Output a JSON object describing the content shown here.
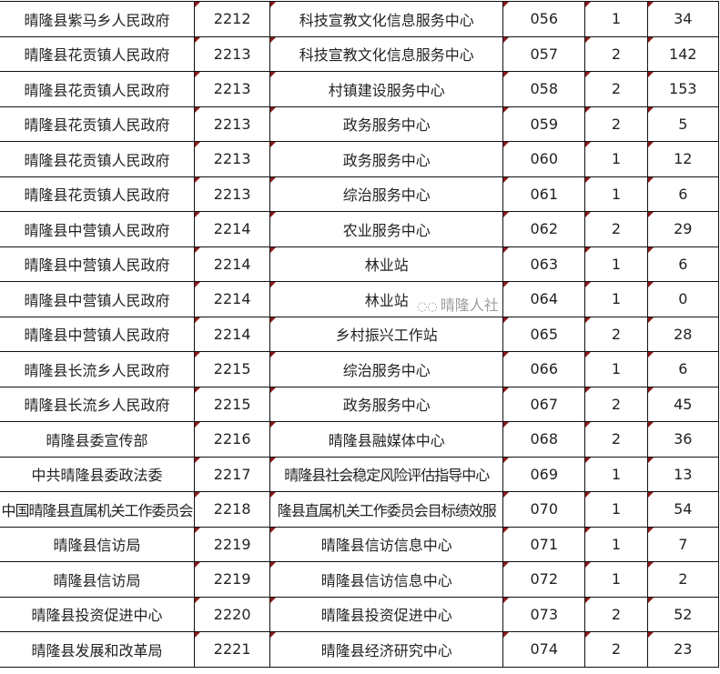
{
  "rows": [
    [
      "晴隆县紫马乡人民政府",
      "2212",
      "科技宣教文化信息服务中心",
      "056",
      "1",
      "34"
    ],
    [
      "晴隆县花贡镇人民政府",
      "2213",
      "科技宣教文化信息服务中心",
      "057",
      "2",
      "142"
    ],
    [
      "晴隆县花贡镇人民政府",
      "2213",
      "村镇建设服务中心",
      "058",
      "2",
      "153"
    ],
    [
      "晴隆县花贡镇人民政府",
      "2213",
      "政务服务中心",
      "059",
      "2",
      "5"
    ],
    [
      "晴隆县花贡镇人民政府",
      "2213",
      "政务服务中心",
      "060",
      "1",
      "12"
    ],
    [
      "晴隆县花贡镇人民政府",
      "2213",
      "综治服务中心",
      "061",
      "1",
      "6"
    ],
    [
      "晴隆县中营镇人民政府",
      "2214",
      "农业服务中心",
      "062",
      "2",
      "29"
    ],
    [
      "晴隆县中营镇人民政府",
      "2214",
      "林业站",
      "063",
      "1",
      "6"
    ],
    [
      "晴隆县中营镇人民政府",
      "2214",
      "林业站",
      "064",
      "1",
      "0"
    ],
    [
      "晴隆县中营镇人民政府",
      "2214",
      "乡村振兴工作站",
      "065",
      "2",
      "28"
    ],
    [
      "晴隆县长流乡人民政府",
      "2215",
      "综治服务中心",
      "066",
      "1",
      "6"
    ],
    [
      "晴隆县长流乡人民政府",
      "2215",
      "政务服务中心",
      "067",
      "2",
      "45"
    ],
    [
      "晴隆县委宣传部",
      "2216",
      "晴隆县融媒体中心",
      "068",
      "2",
      "36"
    ],
    [
      "中共晴隆县委政法委",
      "2217",
      "晴隆县社会稳定风险评估指导中心",
      "069",
      "1",
      "13"
    ],
    [
      "中国晴隆县直属机关工作委员会",
      "2218",
      "隆县直属机关工作委员会目标绩效服",
      "070",
      "1",
      "54"
    ],
    [
      "晴隆县信访局",
      "2219",
      "晴隆县信访信息中心",
      "071",
      "1",
      "7"
    ],
    [
      "晴隆县信访局",
      "2219",
      "晴隆县信访信息中心",
      "072",
      "1",
      "2"
    ],
    [
      "晴隆县投资促进中心",
      "2220",
      "晴隆县投资促进中心",
      "073",
      "2",
      "52"
    ],
    [
      "晴隆县发展和改革局",
      "2221",
      "晴隆县经济研究中心",
      "074",
      "2",
      "23"
    ]
  ],
  "watermark": "晴隆人社",
  "comment_marker_color": "#8b1a1a"
}
